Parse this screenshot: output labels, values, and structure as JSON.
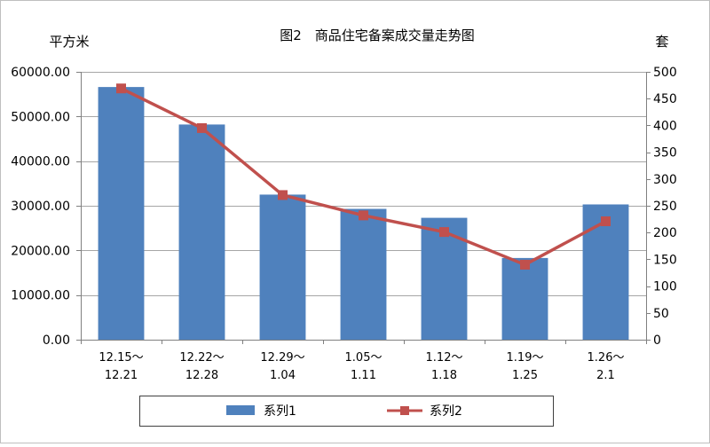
{
  "chart_data": {
    "type": "bar",
    "title": "图2　商品住宅备案成交量走势图",
    "ylabel_left": "平方米",
    "ylabel_right": "套",
    "categories": [
      [
        "12.15～",
        "12.21"
      ],
      [
        "12.22～",
        "12.28"
      ],
      [
        "12.29～",
        "1.04"
      ],
      [
        "1.05～",
        "1.11"
      ],
      [
        "1.12～",
        "1.18"
      ],
      [
        "1.19～",
        "1.25"
      ],
      [
        "1.26～",
        "2.1"
      ]
    ],
    "left_axis": {
      "ylim": [
        0,
        60000
      ],
      "ticks": [
        0,
        10000,
        20000,
        30000,
        40000,
        50000,
        60000
      ],
      "tick_labels": [
        "0.00",
        "10000.00",
        "20000.00",
        "30000.00",
        "40000.00",
        "50000.00",
        "60000.00"
      ]
    },
    "right_axis": {
      "ylim": [
        0,
        500
      ],
      "ticks": [
        0,
        50,
        100,
        150,
        200,
        250,
        300,
        350,
        400,
        450,
        500
      ],
      "tick_labels": [
        "0",
        "50",
        "100",
        "150",
        "200",
        "250",
        "300",
        "350",
        "400",
        "450",
        "500"
      ]
    },
    "series": [
      {
        "name": "系列1",
        "kind": "bar",
        "axis": "left",
        "color": "#4f81bd",
        "values": [
          56600,
          48200,
          32500,
          29300,
          27300,
          18300,
          30300
        ]
      },
      {
        "name": "系列2",
        "kind": "line",
        "axis": "right",
        "color": "#c0504d",
        "marker": "square",
        "values": [
          469,
          395,
          270,
          232,
          201,
          140,
          221
        ]
      }
    ],
    "grid": true,
    "legend_position": "bottom"
  }
}
